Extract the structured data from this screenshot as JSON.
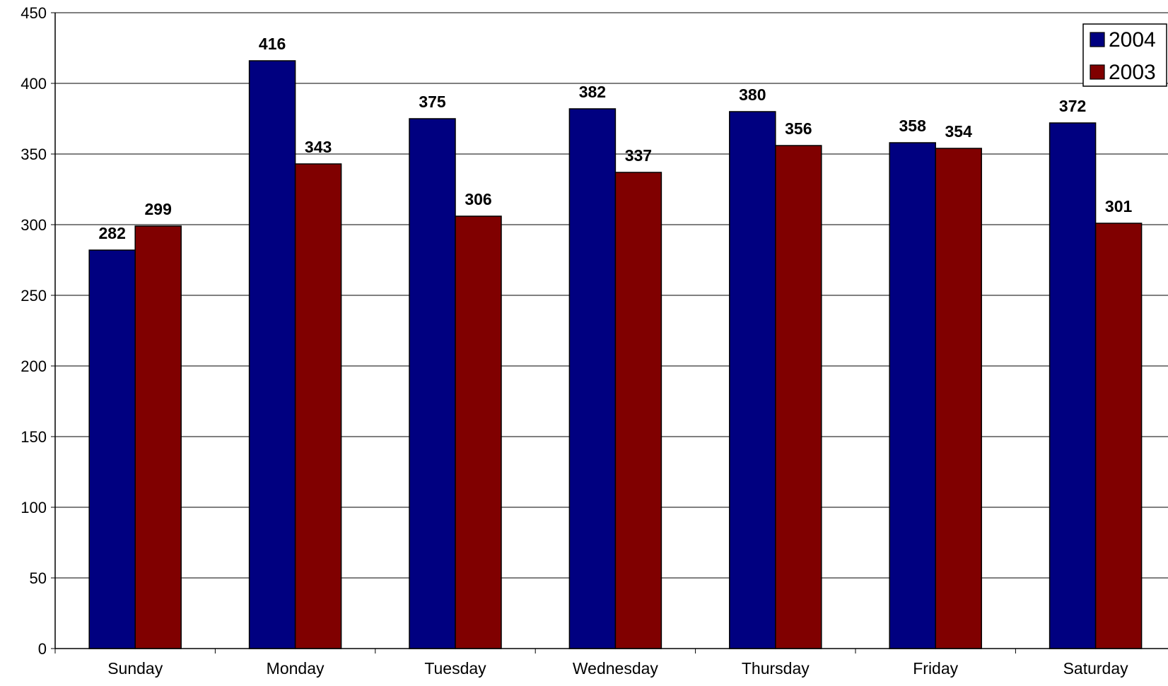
{
  "chart_data": {
    "type": "bar",
    "categories": [
      "Sunday",
      "Monday",
      "Tuesday",
      "Wednesday",
      "Thursday",
      "Friday",
      "Saturday"
    ],
    "series": [
      {
        "name": "2004",
        "color": "#000080",
        "values": [
          282,
          416,
          375,
          382,
          380,
          358,
          372
        ]
      },
      {
        "name": "2003",
        "color": "#800000",
        "values": [
          299,
          343,
          306,
          337,
          356,
          354,
          301
        ]
      }
    ],
    "title": "",
    "xlabel": "",
    "ylabel": "",
    "ylim": [
      0,
      450
    ],
    "yticks": [
      0,
      50,
      100,
      150,
      200,
      250,
      300,
      350,
      400,
      450
    ],
    "grid": true,
    "legend_position": "top-right",
    "data_labels": true
  }
}
